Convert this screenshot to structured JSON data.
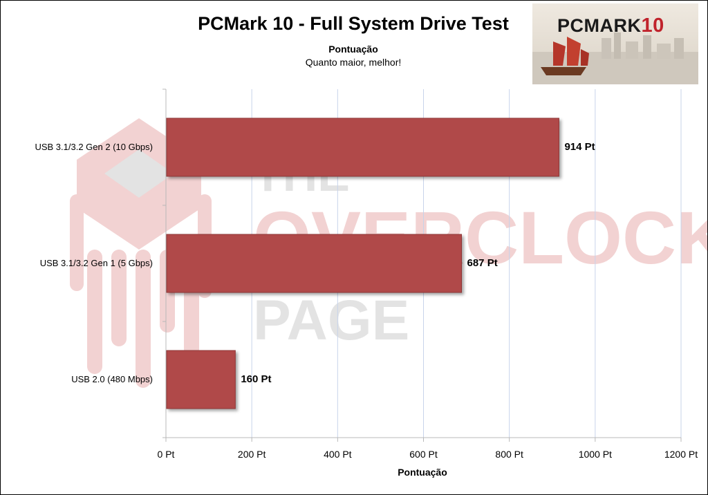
{
  "title": "PCMark 10 - Full System Drive Test",
  "subtitle": "Pontuação",
  "note": "Quanto maior, melhor!",
  "logo": {
    "text_main": "PCMARK",
    "text_num": "10"
  },
  "watermark": {
    "line1": "THE",
    "line2": "OVERCLOCK",
    "line3": "PAGE",
    "icon": "cpu-chip-icon"
  },
  "colors": {
    "bar": "#b04a4a",
    "bar_edge": "#8e3535",
    "grid": "#c7d3ea",
    "axis": "#b8b8b8",
    "watermark_red": "#f2d2d2",
    "watermark_gray": "#e3e3e3"
  },
  "chart_data": {
    "type": "bar",
    "orientation": "horizontal",
    "categories": [
      "USB 3.1/3.2 Gen 2 (10 Gbps)",
      "USB 3.1/3.2 Gen 1 (5 Gbps)",
      "USB 2.0 (480 Mbps)"
    ],
    "values": [
      914,
      687,
      160
    ],
    "value_labels": [
      "914 Pt",
      "687 Pt",
      "160 Pt"
    ],
    "xlabel": "Pontuação",
    "ylabel": "",
    "xlim": [
      0,
      1200
    ],
    "x_ticks": [
      0,
      200,
      400,
      600,
      800,
      1000,
      1200
    ],
    "x_tick_labels": [
      "0 Pt",
      "200 Pt",
      "400 Pt",
      "600 Pt",
      "800 Pt",
      "1000 Pt",
      "1200 Pt"
    ],
    "grid": true
  }
}
